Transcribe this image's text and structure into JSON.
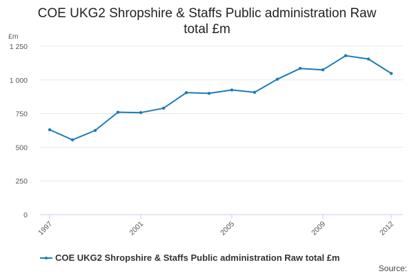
{
  "chart_data": {
    "type": "line",
    "title": "COE UKG2 Shropshire & Staffs Public administration Raw total £m",
    "y_unit": "£m",
    "x": [
      1997,
      1998,
      1999,
      2000,
      2001,
      2002,
      2003,
      2004,
      2005,
      2006,
      2007,
      2008,
      2009,
      2010,
      2011,
      2012
    ],
    "x_tick_labels": [
      "1997",
      "2001",
      "2005",
      "2009",
      "2012"
    ],
    "y_tick_labels": [
      "0",
      "250",
      "500",
      "750",
      "1 000",
      "1 250"
    ],
    "ylim": [
      0,
      1250
    ],
    "grid": true,
    "legend_position": "bottom-left",
    "series": [
      {
        "name": "COE UKG2 Shropshire & Staffs Public administration Raw total £m",
        "color": "#1a7bb9",
        "values": [
          630,
          555,
          625,
          760,
          757,
          790,
          905,
          900,
          925,
          908,
          1005,
          1085,
          1075,
          1180,
          1155,
          1048
        ]
      }
    ],
    "source_label": "Source:"
  }
}
